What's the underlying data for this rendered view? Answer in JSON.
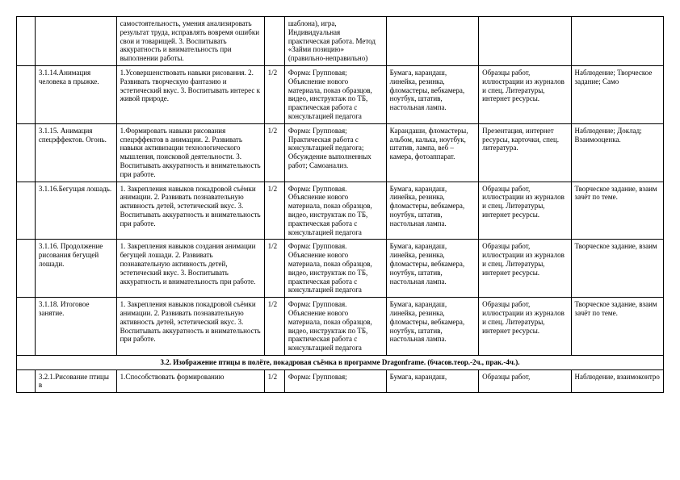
{
  "columns_count": 8,
  "rows": [
    {
      "c0": "",
      "c1": "",
      "c2": "самостоятельность, умения анализировать результат труда, исправлять вовремя ошибки свои и товарищей.\n3. Воспитывать аккуратность и внимательность при выполнении работы.",
      "c3": "",
      "c4": "шаблона), игра, Индивидуальная практическая работа. Метод «Займи позицию» (правильно-неправильно)",
      "c5": "",
      "c6": "",
      "c7": ""
    },
    {
      "c0": "",
      "c1": "3.1.14.Анимация человека в прыжке.",
      "c2": "1.Усовершенствовать навыки рисования.\n2. Развивать творческую фантазию и эстетический вкус.\n3. Воспитывать интерес к живой природе.",
      "c3": "1/2",
      "c4": "Форма: Групповая; Объяснение нового материала, показ образцов, видео, инструктаж по ТБ, практическая работа с консультацией педагога",
      "c5": "Бумага, карандаш, линейка, резинка, фломастеры, вебкамера, ноутбук, штатив, настольная лампа.",
      "c6": "Образцы работ, иллюстрации из журналов и спец. Литературы, интернет ресурсы.",
      "c7": "Наблюдение; Творческое задание; Само"
    },
    {
      "c0": "",
      "c1": "3.1.15. Анимация спецэффектов. Огонь.",
      "c2": "1.Формировать навыки рисования спецэффектов в анимации.\n2. Развивать навыки активизации технологического мышления, поисковой деятельности.\n3. Воспитывать аккуратность и внимательность при работе.",
      "c3": "1/2",
      "c4": "Форма: Групповая; Практическая работа с консультацией педагога; Обсуждение выполненных работ; Самоанализ.",
      "c5": "Карандаши, фломастеры, альбом, калька, ноутбук, штатив, лампа, веб – камера, фотоаппарат.",
      "c6": "Презентация, интернет ресурсы, карточки, спец. литература.",
      "c7": "Наблюдение; Доклад; Взаимооценка."
    },
    {
      "c0": "",
      "c1": "3.1.16.Бегущая лошадь.",
      "c2": "1. Закрепления навыков покадровой съёмки анимации.\n2. Развивать познавательную активность детей, эстетический вкус.\n3. Воспитывать аккуратность и внимательность при работе.",
      "c3": "1/2",
      "c4": "Форма: Групповая. Объяснение нового материала, показ образцов, видео, инструктаж по ТБ, практическая работа с консультацией педагога",
      "c5": "Бумага, карандаш, линейка, резинка, фломастеры, вебкамера, ноутбук, штатив, настольная лампа.",
      "c6": "Образцы работ, иллюстрации из журналов и спец. Литературы, интернет ресурсы.",
      "c7": "Творческое задание, взаим зачёт по теме."
    },
    {
      "c0": "",
      "c1": "3.1.16. Продолжение рисования бегущей лошади.",
      "c2": "1. Закрепления навыков создания анимации бегущей лошади.\n2. Развивать познавательную активность детей, эстетический вкус.\n3. Воспитывать аккуратность и внимательность при работе.",
      "c3": "1/2",
      "c4": "Форма: Групповая. Объяснение нового материала, показ образцов, видео, инструктаж по ТБ, практическая работа с консультацией педагога",
      "c5": "Бумага, карандаш, линейка, резинка, фломастеры, вебкамера, ноутбук, штатив, настольная лампа.",
      "c6": "Образцы работ, иллюстрации из журналов и спец. Литературы, интернет ресурсы.",
      "c7": "Творческое задание, взаим"
    },
    {
      "c0": "",
      "c1": "3.1.18. Итоговое занятие.",
      "c2": "1. Закрепления навыков покадровой съёмки анимации.\n2. Развивать познавательную активность детей, эстетический вкус.\n3. Воспитывать аккуратность и внимательность при работе.",
      "c3": "1/2",
      "c4": "Форма: Групповая. Объяснение нового материала, показ образцов, видео, инструктаж по ТБ, практическая работа с консультацией педагога",
      "c5": "Бумага, карандаш, линейка, резинка, фломастеры, вебкамера, ноутбук, штатив, настольная лампа.",
      "c6": "Образцы работ, иллюстрации из журналов и спец. Литературы, интернет ресурсы.",
      "c7": "Творческое задание, взаим зачёт по теме."
    }
  ],
  "section_header": "3.2. Изображение птицы в полёте, покадровая съёмка в программе Dragonframe. (6часов.теор.-2ч., прак.-4ч.).",
  "last_row": {
    "c0": "",
    "c1": "3.2.1.Рисование птицы в",
    "c2": "1.Способствовать формированию",
    "c3": "1/2",
    "c4": "Форма: Групповая;",
    "c5": "Бумага, карандаш,",
    "c6": "Образцы работ,",
    "c7": "Наблюдение, взаимоконтро"
  }
}
